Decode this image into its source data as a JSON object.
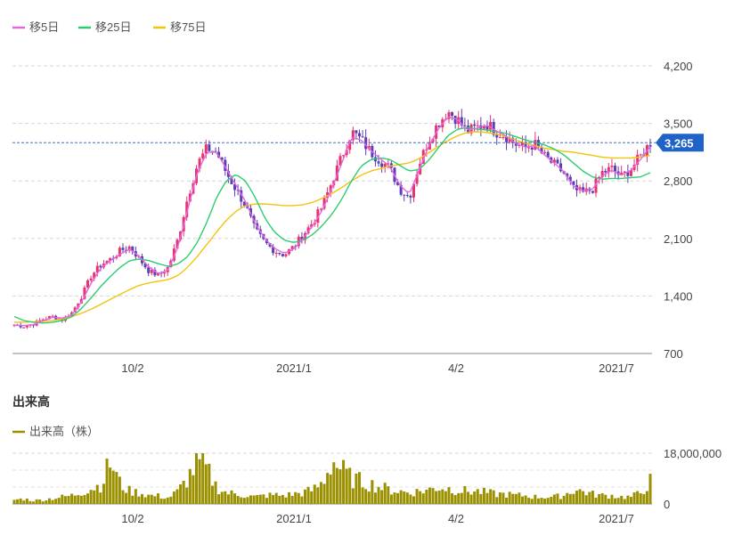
{
  "legend": [
    {
      "label": "移5日",
      "color": "#e468e4"
    },
    {
      "label": "移25日",
      "color": "#2ecc71"
    },
    {
      "label": "移75日",
      "color": "#f1c40f"
    }
  ],
  "price_badge": "3,265",
  "volume_title": "出来高",
  "volume_legend": {
    "label": "出来高（株）",
    "color": "#9a9000"
  },
  "chart_data": [
    {
      "type": "candlestick",
      "y_ticks": [
        4200,
        3500,
        2800,
        2100,
        1400,
        700
      ],
      "y_tick_labels": [
        "4,200",
        "3,500",
        "2,800",
        "2,100",
        "1,400",
        "700"
      ],
      "ylim": [
        700,
        4200
      ],
      "x_tick_labels": [
        "10/2",
        "2021/1",
        "4/2",
        "2021/7"
      ],
      "last_price": 3265,
      "grid": true,
      "legend_position": "top-left",
      "colors": {
        "up": "#e8336d",
        "down": "#5b3fb5"
      },
      "price_path": [
        1050,
        1030,
        1060,
        1120,
        1150,
        1110,
        1200,
        1400,
        1650,
        1780,
        1850,
        1950,
        2000,
        1850,
        1700,
        1650,
        1750,
        2100,
        2600,
        3000,
        3200,
        3150,
        2900,
        2700,
        2500,
        2200,
        2050,
        1950,
        1900,
        2000,
        2150,
        2300,
        2500,
        2800,
        3100,
        3400,
        3300,
        3150,
        3050,
        2950,
        2700,
        2600,
        3000,
        3300,
        3500,
        3650,
        3550,
        3400,
        3450,
        3500,
        3400,
        3350,
        3250,
        3200,
        3250,
        3100,
        3000,
        2900,
        2700,
        2650,
        2700,
        2900,
        2950,
        2850,
        2950,
        3100,
        3265
      ],
      "ma5_path": [
        1040,
        1040,
        1050,
        1100,
        1140,
        1130,
        1170,
        1330,
        1560,
        1740,
        1830,
        1910,
        1970,
        1880,
        1750,
        1670,
        1720,
        2000,
        2450,
        2900,
        3150,
        3150,
        2950,
        2750,
        2550,
        2280,
        2100,
        1980,
        1920,
        1970,
        2100,
        2260,
        2450,
        2720,
        3020,
        3330,
        3300,
        3170,
        3070,
        2970,
        2750,
        2640,
        2930,
        3220,
        3430,
        3580,
        3550,
        3420,
        3440,
        3480,
        3410,
        3350,
        3260,
        3210,
        3230,
        3120,
        3020,
        2920,
        2740,
        2680,
        2700,
        2860,
        2930,
        2870,
        2930,
        3060,
        3220
      ],
      "ma25_path": [
        1150,
        1100,
        1080,
        1070,
        1080,
        1100,
        1150,
        1250,
        1380,
        1520,
        1640,
        1750,
        1830,
        1850,
        1830,
        1790,
        1760,
        1790,
        1880,
        2050,
        2300,
        2600,
        2800,
        2880,
        2800,
        2600,
        2350,
        2180,
        2080,
        2050,
        2080,
        2150,
        2260,
        2400,
        2580,
        2800,
        2980,
        3060,
        3080,
        3060,
        2990,
        2920,
        2940,
        3050,
        3200,
        3350,
        3430,
        3450,
        3430,
        3420,
        3400,
        3380,
        3340,
        3300,
        3270,
        3240,
        3190,
        3120,
        3020,
        2920,
        2850,
        2820,
        2830,
        2830,
        2840,
        2850,
        2900
      ],
      "ma75_path": [
        1080,
        1080,
        1085,
        1090,
        1100,
        1120,
        1150,
        1190,
        1240,
        1300,
        1360,
        1420,
        1480,
        1530,
        1560,
        1580,
        1600,
        1650,
        1750,
        1880,
        2030,
        2180,
        2320,
        2430,
        2500,
        2520,
        2520,
        2510,
        2500,
        2500,
        2510,
        2540,
        2590,
        2650,
        2720,
        2800,
        2870,
        2920,
        2950,
        2980,
        3000,
        3020,
        3070,
        3140,
        3220,
        3290,
        3350,
        3390,
        3400,
        3390,
        3370,
        3340,
        3300,
        3260,
        3230,
        3200,
        3180,
        3160,
        3150,
        3130,
        3110,
        3090,
        3080,
        3080,
        3080,
        3090,
        3110
      ]
    },
    {
      "type": "bar",
      "series_name": "出来高（株）",
      "y_tick_labels": [
        "18,000,000",
        "0"
      ],
      "ylim": [
        0,
        18000000
      ],
      "x_tick_labels": [
        "10/2",
        "2021/1",
        "4/2",
        "2021/7"
      ],
      "values_in_millions": [
        1.5,
        1.8,
        1.2,
        1.5,
        2.0,
        2.5,
        3.0,
        4.2,
        5.5,
        6.8,
        15.0,
        7.0,
        4.5,
        4.0,
        3.0,
        2.8,
        2.2,
        4.5,
        9.0,
        15.0,
        12.0,
        6.0,
        4.0,
        3.5,
        3.0,
        2.5,
        3.0,
        3.2,
        3.0,
        3.5,
        4.0,
        5.0,
        7.5,
        15.5,
        12.0,
        9.0,
        8.0,
        7.0,
        6.0,
        5.0,
        4.5,
        4.0,
        4.5,
        5.0,
        6.0,
        5.5,
        5.0,
        4.5,
        4.5,
        4.0,
        3.5,
        3.5,
        3.0,
        3.0,
        2.5,
        2.5,
        2.5,
        3.0,
        5.0,
        4.5,
        3.5,
        3.0,
        3.0,
        2.5,
        2.5,
        4.0,
        8.0
      ]
    }
  ]
}
